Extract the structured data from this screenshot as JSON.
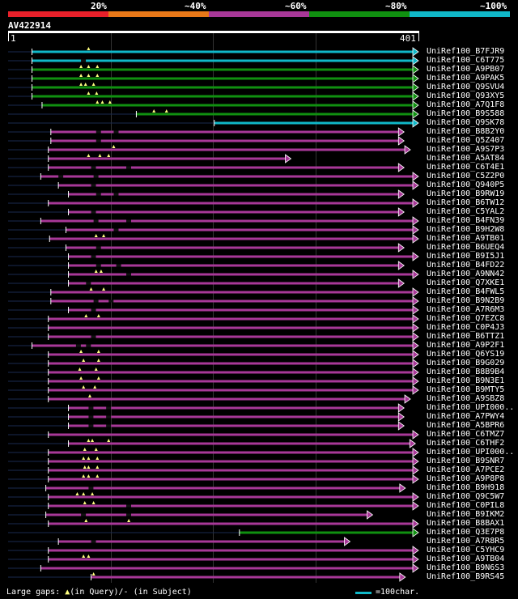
{
  "legend_scale": {
    "labels": [
      "20%",
      "~40%",
      "~60%",
      "~80%",
      "~100%"
    ],
    "colors": [
      "#e8202a",
      "#e87818",
      "#a83898",
      "#109010",
      "#10b8c8"
    ]
  },
  "query": {
    "title": "AV422914",
    "start_label": "1",
    "end_label": "401",
    "length": 401
  },
  "hits": [
    {
      "label": "UniRef100_B7FJR9",
      "color": "#10b8c8",
      "start": 95,
      "end": 1632,
      "arrow": true,
      "ins": [
        320
      ],
      "dels": []
    },
    {
      "label": "UniRef100_C6T775",
      "color": "#10b8c8",
      "start": 95,
      "end": 1632,
      "arrow": true,
      "ins": [],
      "dels": [
        290
      ]
    },
    {
      "label": "UniRef100_A9PB07",
      "color": "#109010",
      "start": 95,
      "end": 1632,
      "arrow": true,
      "ins": [
        290,
        320,
        355
      ],
      "dels": []
    },
    {
      "label": "UniRef100_A9PAK5",
      "color": "#109010",
      "start": 95,
      "end": 1632,
      "arrow": true,
      "ins": [
        290,
        320,
        355
      ],
      "dels": []
    },
    {
      "label": "UniRef100_Q9SVU4",
      "color": "#109010",
      "start": 95,
      "end": 1632,
      "arrow": true,
      "ins": [
        290,
        308,
        340
      ],
      "dels": []
    },
    {
      "label": "UniRef100_Q93XY5",
      "color": "#109010",
      "start": 95,
      "end": 1632,
      "arrow": true,
      "ins": [
        320,
        352
      ],
      "dels": []
    },
    {
      "label": "UniRef100_A7Q1F8",
      "color": "#109010",
      "start": 135,
      "end": 1632,
      "arrow": true,
      "ins": [
        355,
        375,
        405
      ],
      "dels": []
    },
    {
      "label": "UniRef100_B9S588",
      "color": "#109010",
      "start": 510,
      "end": 1632,
      "arrow": true,
      "ins": [
        580,
        630
      ],
      "dels": []
    },
    {
      "label": "UniRef100_Q9SK78",
      "color": "#10b8c8",
      "start": 820,
      "end": 1632,
      "arrow": true,
      "ins": [],
      "dels": []
    },
    {
      "label": "UniRef100_B8B2Y0",
      "color": "#a83898",
      "start": 170,
      "end": 1575,
      "arrow": true,
      "ins": [],
      "dels": [
        350,
        420
      ]
    },
    {
      "label": "UniRef100_Q5Z407",
      "color": "#a83898",
      "start": 170,
      "end": 1575,
      "arrow": true,
      "ins": [],
      "dels": [
        350
      ]
    },
    {
      "label": "UniRef100_A9S7P3",
      "color": "#a83898",
      "start": 160,
      "end": 1600,
      "arrow": true,
      "ins": [
        420
      ],
      "dels": []
    },
    {
      "label": "UniRef100_A5AT84",
      "color": "#a83898",
      "start": 160,
      "end": 1125,
      "arrow": true,
      "ins": [
        320,
        365,
        400
      ],
      "dels": []
    },
    {
      "label": "UniRef100_C6T4E1",
      "color": "#a83898",
      "start": 160,
      "end": 1575,
      "arrow": true,
      "ins": [],
      "dels": [
        330,
        470
      ]
    },
    {
      "label": "UniRef100_C5Z2P0",
      "color": "#a83898",
      "start": 130,
      "end": 1632,
      "arrow": true,
      "ins": [],
      "dels": [
        200,
        340
      ]
    },
    {
      "label": "UniRef100_Q940P5",
      "color": "#a83898",
      "start": 200,
      "end": 1632,
      "arrow": true,
      "ins": [],
      "dels": [
        330
      ]
    },
    {
      "label": "UniRef100_B9RW19",
      "color": "#a83898",
      "start": 240,
      "end": 1575,
      "arrow": true,
      "ins": [],
      "dels": [
        350,
        420
      ]
    },
    {
      "label": "UniRef100_B6TW12",
      "color": "#a83898",
      "start": 160,
      "end": 1632,
      "arrow": true,
      "ins": [],
      "dels": []
    },
    {
      "label": "UniRef100_C5YAL2",
      "color": "#a83898",
      "start": 240,
      "end": 1575,
      "arrow": true,
      "ins": [],
      "dels": [
        330
      ]
    },
    {
      "label": "UniRef100_B4FN39",
      "color": "#a83898",
      "start": 130,
      "end": 1632,
      "arrow": true,
      "ins": [],
      "dels": [
        340,
        470
      ]
    },
    {
      "label": "UniRef100_B9H2W8",
      "color": "#a83898",
      "start": 230,
      "end": 1632,
      "arrow": true,
      "ins": [],
      "dels": [
        420
      ]
    },
    {
      "label": "UniRef100_A9TB01",
      "color": "#a83898",
      "start": 165,
      "end": 1632,
      "arrow": true,
      "ins": [
        350,
        380
      ],
      "dels": []
    },
    {
      "label": "UniRef100_B6UEQ4",
      "color": "#a83898",
      "start": 230,
      "end": 1575,
      "arrow": true,
      "ins": [],
      "dels": [
        350
      ]
    },
    {
      "label": "UniRef100_B9I5J1",
      "color": "#a83898",
      "start": 240,
      "end": 1632,
      "arrow": true,
      "ins": [],
      "dels": [
        330
      ]
    },
    {
      "label": "UniRef100_B4FD22",
      "color": "#a83898",
      "start": 240,
      "end": 1575,
      "arrow": true,
      "ins": [],
      "dels": [
        350,
        430
      ]
    },
    {
      "label": "UniRef100_A9NN42",
      "color": "#a83898",
      "start": 240,
      "end": 1632,
      "arrow": true,
      "ins": [
        350,
        370
      ],
      "dels": [
        470
      ]
    },
    {
      "label": "UniRef100_Q7XKE1",
      "color": "#a83898",
      "start": 240,
      "end": 1575,
      "arrow": true,
      "ins": [],
      "dels": [
        310
      ]
    },
    {
      "label": "UniRef100_B4FWL5",
      "color": "#a83898",
      "start": 170,
      "end": 1632,
      "arrow": true,
      "ins": [
        330,
        380
      ],
      "dels": []
    },
    {
      "label": "UniRef100_B9N2B9",
      "color": "#a83898",
      "start": 170,
      "end": 1632,
      "arrow": true,
      "ins": [],
      "dels": [
        340,
        400
      ]
    },
    {
      "label": "UniRef100_A7R6M3",
      "color": "#a83898",
      "start": 240,
      "end": 1632,
      "arrow": true,
      "ins": [],
      "dels": [
        330
      ]
    },
    {
      "label": "UniRef100_Q7EZC8",
      "color": "#a83898",
      "start": 160,
      "end": 1632,
      "arrow": true,
      "ins": [
        310,
        360
      ],
      "dels": []
    },
    {
      "label": "UniRef100_C0P4J3",
      "color": "#a83898",
      "start": 160,
      "end": 1632,
      "arrow": true,
      "ins": [],
      "dels": []
    },
    {
      "label": "UniRef100_B6TTZ1",
      "color": "#a83898",
      "start": 160,
      "end": 1632,
      "arrow": true,
      "ins": [],
      "dels": [
        330
      ]
    },
    {
      "label": "UniRef100_A9P2F1",
      "color": "#a83898",
      "start": 95,
      "end": 1632,
      "arrow": true,
      "ins": [],
      "dels": [
        270,
        310
      ]
    },
    {
      "label": "UniRef100_Q6YS19",
      "color": "#a83898",
      "start": 160,
      "end": 1632,
      "arrow": true,
      "ins": [
        290,
        360
      ],
      "dels": []
    },
    {
      "label": "UniRef100_B9G029",
      "color": "#a83898",
      "start": 160,
      "end": 1632,
      "arrow": true,
      "ins": [
        300,
        360
      ],
      "dels": []
    },
    {
      "label": "UniRef100_B8B9B4",
      "color": "#a83898",
      "start": 160,
      "end": 1632,
      "arrow": true,
      "ins": [
        285,
        350
      ],
      "dels": []
    },
    {
      "label": "UniRef100_B9N3E1",
      "color": "#a83898",
      "start": 160,
      "end": 1632,
      "arrow": true,
      "ins": [
        290,
        360
      ],
      "dels": []
    },
    {
      "label": "UniRef100_B9MTY5",
      "color": "#a83898",
      "start": 160,
      "end": 1632,
      "arrow": true,
      "ins": [
        300,
        345
      ],
      "dels": []
    },
    {
      "label": "UniRef100_A9SBZ8",
      "color": "#a83898",
      "start": 160,
      "end": 1600,
      "arrow": true,
      "ins": [
        325
      ],
      "dels": []
    },
    {
      "label": "UniRef100_UPI000..",
      "color": "#a83898",
      "start": 240,
      "end": 1575,
      "arrow": true,
      "ins": [],
      "dels": [
        320,
        390
      ]
    },
    {
      "label": "UniRef100_A7PWY4",
      "color": "#a83898",
      "start": 240,
      "end": 1575,
      "arrow": true,
      "ins": [],
      "dels": [
        320,
        390
      ]
    },
    {
      "label": "UniRef100_A5BPR6",
      "color": "#a83898",
      "start": 240,
      "end": 1575,
      "arrow": true,
      "ins": [],
      "dels": [
        320,
        390
      ]
    },
    {
      "label": "UniRef100_C6TMZ7",
      "color": "#a83898",
      "start": 160,
      "end": 1632,
      "arrow": true,
      "ins": [],
      "dels": []
    },
    {
      "label": "UniRef100_C6THF2",
      "color": "#a83898",
      "start": 240,
      "end": 1620,
      "arrow": true,
      "ins": [
        320,
        335,
        400
      ],
      "dels": []
    },
    {
      "label": "UniRef100_UPI000..",
      "color": "#a83898",
      "start": 160,
      "end": 1632,
      "arrow": true,
      "ins": [
        305,
        350
      ],
      "dels": []
    },
    {
      "label": "UniRef100_B9SNR7",
      "color": "#a83898",
      "start": 160,
      "end": 1632,
      "arrow": true,
      "ins": [
        300,
        320,
        355
      ],
      "dels": []
    },
    {
      "label": "UniRef100_A7PCE2",
      "color": "#a83898",
      "start": 160,
      "end": 1632,
      "arrow": true,
      "ins": [
        305,
        320,
        355
      ],
      "dels": []
    },
    {
      "label": "UniRef100_A9P8P8",
      "color": "#a83898",
      "start": 160,
      "end": 1632,
      "arrow": true,
      "ins": [
        300,
        320,
        355
      ],
      "dels": []
    },
    {
      "label": "UniRef100_B9H918",
      "color": "#a83898",
      "start": 150,
      "end": 1580,
      "arrow": true,
      "ins": [],
      "dels": [
        320
      ]
    },
    {
      "label": "UniRef100_Q9C5W7",
      "color": "#a83898",
      "start": 160,
      "end": 1632,
      "arrow": true,
      "ins": [
        275,
        300,
        335
      ],
      "dels": []
    },
    {
      "label": "UniRef100_C0PIL8",
      "color": "#a83898",
      "start": 160,
      "end": 1632,
      "arrow": true,
      "ins": [
        305,
        340
      ],
      "dels": [
        470
      ]
    },
    {
      "label": "UniRef100_B9IKM2",
      "color": "#a83898",
      "start": 150,
      "end": 1450,
      "arrow": true,
      "ins": [],
      "dels": [
        290,
        470
      ]
    },
    {
      "label": "UniRef100_B8BAX1",
      "color": "#a83898",
      "start": 160,
      "end": 1632,
      "arrow": true,
      "ins": [
        310,
        480
      ],
      "dels": []
    },
    {
      "label": "UniRef100_Q3E7P8",
      "color": "#109010",
      "start": 920,
      "end": 1632,
      "arrow": true,
      "ins": [],
      "dels": []
    },
    {
      "label": "UniRef100_A7R8R5",
      "color": "#a83898",
      "start": 200,
      "end": 1360,
      "arrow": true,
      "ins": [],
      "dels": [
        330
      ]
    },
    {
      "label": "UniRef100_C5YHC9",
      "color": "#a83898",
      "start": 160,
      "end": 1632,
      "arrow": true,
      "ins": [],
      "dels": []
    },
    {
      "label": "UniRef100_A9TB04",
      "color": "#a83898",
      "start": 160,
      "end": 1632,
      "arrow": true,
      "ins": [
        300,
        320
      ],
      "dels": []
    },
    {
      "label": "UniRef100_B9N6S3",
      "color": "#a83898",
      "start": 130,
      "end": 1632,
      "arrow": true,
      "ins": [],
      "dels": []
    },
    {
      "label": "UniRef100_B9RS45",
      "color": "#a83898",
      "start": 330,
      "end": 1580,
      "arrow": true,
      "ins": [
        340
      ],
      "dels": []
    }
  ],
  "footer": {
    "gaps_prefix": "Large gaps: ",
    "gaps_query": "(in Query)/",
    "gaps_dash": "- ",
    "gaps_subject": "(in Subject)",
    "scale_color": "#10b8c8",
    "scale_text": "=100char."
  }
}
